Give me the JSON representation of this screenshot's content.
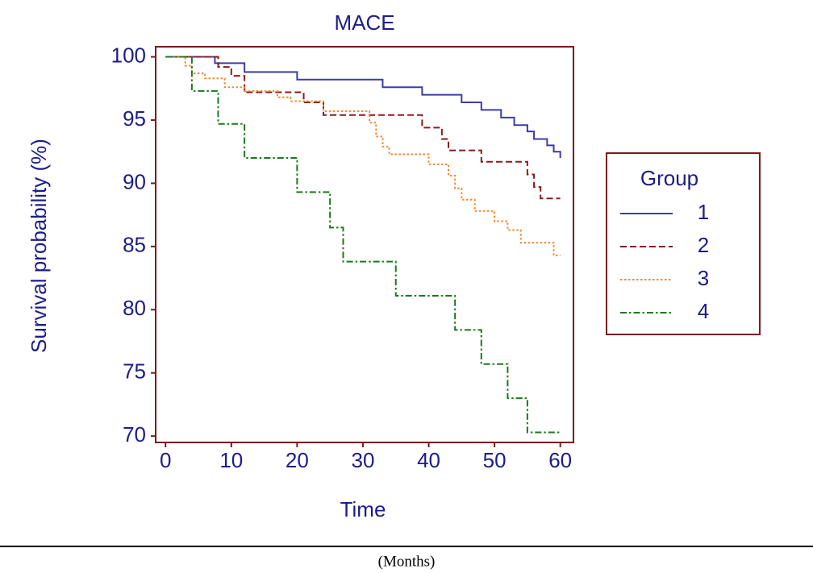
{
  "chart_data": {
    "type": "step",
    "title": "MACE",
    "x_label": "Time",
    "y_label": "Survival probability (%)",
    "xlim": [
      -1.5,
      62
    ],
    "ylim": [
      69.5,
      100.8
    ],
    "xticks": [
      0,
      10,
      20,
      30,
      40,
      50,
      60
    ],
    "yticks": [
      70,
      75,
      80,
      85,
      90,
      95,
      100
    ],
    "legend_title": "Group",
    "legend": "right",
    "series": [
      {
        "name": "1",
        "color": "#3c3ca8",
        "dash": "solid",
        "x": [
          0,
          7.5,
          12,
          20,
          33,
          39,
          45,
          48,
          51,
          53,
          55,
          56,
          58,
          59,
          60
        ],
        "values": [
          100,
          99.5,
          98.8,
          98.2,
          97.6,
          97.0,
          96.4,
          95.8,
          95.2,
          94.6,
          94.1,
          93.5,
          93.0,
          92.5,
          92.0
        ]
      },
      {
        "name": "2",
        "color": "#8b1a1a",
        "dash": "dashed",
        "x": [
          0,
          8,
          10,
          12,
          21,
          24,
          39,
          42,
          43,
          48,
          55,
          56,
          57,
          60
        ],
        "values": [
          100,
          99.2,
          98.5,
          97.2,
          96.4,
          95.4,
          94.4,
          93.5,
          92.6,
          91.7,
          90.7,
          89.7,
          88.8,
          88.8
        ]
      },
      {
        "name": "3",
        "color": "#f28a30",
        "dash": "dotted",
        "x": [
          0,
          3,
          4,
          6,
          9,
          12,
          17,
          19,
          24,
          31,
          32,
          33,
          34,
          40,
          43,
          44,
          45,
          47,
          50,
          52,
          54,
          59,
          60
        ],
        "values": [
          100,
          99.3,
          98.7,
          98.3,
          97.6,
          97.3,
          96.8,
          96.5,
          95.7,
          94.8,
          93.7,
          92.9,
          92.3,
          91.5,
          90.6,
          89.6,
          88.7,
          87.8,
          87.0,
          86.3,
          85.3,
          84.3,
          84.3
        ]
      },
      {
        "name": "4",
        "color": "#1a7a1a",
        "dash": "dashdot",
        "x": [
          0,
          4,
          8,
          12,
          20,
          25,
          27,
          35,
          44,
          48,
          52,
          55,
          60
        ],
        "values": [
          100,
          97.3,
          94.7,
          92.0,
          89.3,
          86.5,
          83.8,
          81.1,
          78.4,
          75.7,
          73.0,
          70.3,
          70.3
        ]
      }
    ]
  },
  "footer": {
    "text": "(Months)"
  }
}
